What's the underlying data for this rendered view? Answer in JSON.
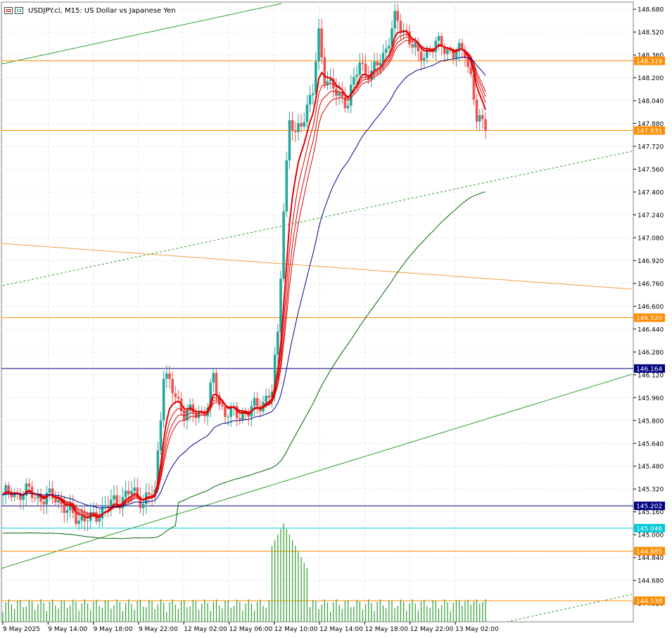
{
  "header": {
    "symbol": "USDJPY.cl, M15:",
    "description": "US Dollar vs Japanese Yen"
  },
  "colors": {
    "bull": "#26a69a",
    "bear": "#ef5350",
    "ma_red": "#e00000",
    "ma_blue": "#00008b",
    "ma_green": "#006400",
    "orange_line": "#ff8c00",
    "cyan_line": "#00c8d8",
    "navy_line": "#000080",
    "grid": "#e6e6e6"
  },
  "chart_data": {
    "type": "candlestick",
    "title": "USDJPY.cl, M15: US Dollar vs Japanese Yen",
    "ylim": [
      144.39,
      148.73
    ],
    "y_ticks": [
      "148.680",
      "148.520",
      "148.360",
      "148.200",
      "148.040",
      "147.880",
      "147.720",
      "147.560",
      "147.400",
      "147.240",
      "147.080",
      "146.920",
      "146.760",
      "146.600",
      "146.440",
      "146.280",
      "146.120",
      "145.960",
      "145.800",
      "145.640",
      "145.480",
      "145.320",
      "145.160",
      "145.000",
      "144.840",
      "144.680",
      "144.520"
    ],
    "x_labels": [
      "9 May 2025",
      "9 May 14:00",
      "9 May 18:00",
      "9 May 22:00",
      "12 May 02:00",
      "12 May 06:00",
      "12 May 10:00",
      "12 May 14:00",
      "12 May 18:00",
      "12 May 22:00",
      "13 May 02:00"
    ],
    "price_levels": [
      {
        "label": "148.319",
        "value": 148.319,
        "color": "orange"
      },
      {
        "label": "147.831",
        "value": 147.831,
        "color": "orange"
      },
      {
        "label": "146.520",
        "value": 146.52,
        "color": "orange"
      },
      {
        "label": "146.164",
        "value": 146.164,
        "color": "navy"
      },
      {
        "label": "145.202",
        "value": 145.202,
        "color": "navy"
      },
      {
        "label": "145.046",
        "value": 145.046,
        "color": "cyan"
      },
      {
        "label": "144.885",
        "value": 144.885,
        "color": "orange"
      },
      {
        "label": "144.538",
        "value": 144.538,
        "color": "orange"
      }
    ],
    "anchors": [
      [
        0,
        145.28
      ],
      [
        8,
        145.3
      ],
      [
        14,
        145.25
      ],
      [
        18,
        145.27
      ],
      [
        22,
        145.16
      ],
      [
        26,
        145.12
      ],
      [
        30,
        145.1
      ],
      [
        34,
        145.18
      ],
      [
        40,
        145.25
      ],
      [
        44,
        145.3
      ],
      [
        48,
        145.24
      ],
      [
        52,
        145.29
      ],
      [
        55,
        146.14
      ],
      [
        58,
        146.0
      ],
      [
        62,
        145.86
      ],
      [
        66,
        145.84
      ],
      [
        70,
        145.9
      ],
      [
        72,
        146.1
      ],
      [
        74,
        145.92
      ],
      [
        76,
        145.86
      ],
      [
        80,
        145.84
      ],
      [
        84,
        145.86
      ],
      [
        88,
        145.92
      ],
      [
        92,
        146.0
      ],
      [
        94,
        146.4
      ],
      [
        96,
        147.3
      ],
      [
        98,
        147.9
      ],
      [
        100,
        147.78
      ],
      [
        102,
        147.9
      ],
      [
        106,
        148.1
      ],
      [
        108,
        148.5
      ],
      [
        110,
        148.22
      ],
      [
        114,
        148.08
      ],
      [
        118,
        148.04
      ],
      [
        122,
        148.3
      ],
      [
        126,
        148.22
      ],
      [
        130,
        148.36
      ],
      [
        134,
        148.6
      ],
      [
        138,
        148.52
      ],
      [
        142,
        148.34
      ],
      [
        146,
        148.4
      ],
      [
        150,
        148.44
      ],
      [
        154,
        148.36
      ],
      [
        158,
        148.4
      ],
      [
        160,
        148.2
      ],
      [
        162,
        147.9
      ],
      [
        165,
        147.87
      ]
    ],
    "candle_count": 166,
    "candle_ohlc_summary": {
      "first_open": 145.28,
      "high": 148.66,
      "low": 144.8,
      "last_close": 147.831
    },
    "volume": {
      "baseline_area": "bottom",
      "peak_near": "12 May 07:00"
    }
  }
}
